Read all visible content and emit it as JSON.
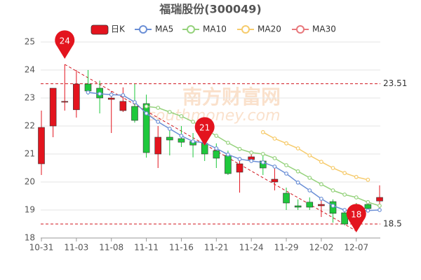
{
  "chart_data": {
    "type": "candlestick",
    "title": "福瑞股份(300049)",
    "categories": [
      "10-31",
      null,
      null,
      "11-03",
      null,
      null,
      "11-08",
      null,
      null,
      "11-11",
      null,
      null,
      "11-16",
      null,
      null,
      "11-21",
      null,
      null,
      "11-24",
      null,
      null,
      "11-29",
      null,
      null,
      "12-02",
      null,
      null,
      "12-07",
      null,
      null
    ],
    "candles": {
      "name": "日K",
      "up_color": "#e3141e",
      "down_color": "#1ec83c",
      "open": [
        20.65,
        22.0,
        22.85,
        22.58,
        23.5,
        23.35,
        22.95,
        22.55,
        22.7,
        22.8,
        21.0,
        21.6,
        21.55,
        21.45,
        21.38,
        21.12,
        20.95,
        20.35,
        20.8,
        20.75,
        20.0,
        19.6,
        19.15,
        19.28,
        19.15,
        19.3,
        18.9,
        18.85,
        19.2,
        19.32
      ],
      "high": [
        22.55,
        23.35,
        24.2,
        24.0,
        24.0,
        23.62,
        23.25,
        23.38,
        23.5,
        23.12,
        22.0,
        21.85,
        22.0,
        21.75,
        21.55,
        21.38,
        21.12,
        20.88,
        21.12,
        20.95,
        20.5,
        19.8,
        19.38,
        19.45,
        19.45,
        19.38,
        19.05,
        19.25,
        19.3,
        19.88
      ],
      "low": [
        20.25,
        21.6,
        22.55,
        22.3,
        23.12,
        22.45,
        21.75,
        22.5,
        22.12,
        20.87,
        20.5,
        20.95,
        21.25,
        20.88,
        20.75,
        20.5,
        20.25,
        19.62,
        20.7,
        20.25,
        19.7,
        19.0,
        19.0,
        19.0,
        18.75,
        18.55,
        18.45,
        18.25,
        18.95,
        19.0
      ],
      "close": [
        21.95,
        23.35,
        22.88,
        23.5,
        23.25,
        23.0,
        23.0,
        22.88,
        22.2,
        21.05,
        21.6,
        21.5,
        21.42,
        21.32,
        21.0,
        20.85,
        20.3,
        20.65,
        20.9,
        20.5,
        20.1,
        19.25,
        19.1,
        19.1,
        19.2,
        18.88,
        18.5,
        18.75,
        19.05,
        19.45
      ]
    },
    "series": [
      {
        "name": "MA5",
        "color": "#6b8fd6",
        "values": [
          null,
          null,
          null,
          null,
          23.2,
          23.15,
          23.12,
          23.1,
          22.85,
          22.45,
          22.15,
          21.9,
          21.65,
          21.45,
          21.4,
          21.2,
          20.98,
          20.82,
          20.75,
          20.7,
          20.55,
          20.3,
          19.98,
          19.7,
          19.4,
          19.15,
          19.0,
          18.95,
          18.98,
          19.0
        ]
      },
      {
        "name": "MA10",
        "color": "#95d27c",
        "values": [
          null,
          null,
          null,
          null,
          null,
          null,
          null,
          null,
          null,
          22.7,
          22.65,
          22.5,
          22.35,
          22.15,
          21.9,
          21.65,
          21.4,
          21.18,
          21.05,
          21.0,
          20.85,
          20.6,
          20.38,
          20.15,
          19.92,
          19.7,
          19.55,
          19.45,
          19.28,
          19.15
        ]
      },
      {
        "name": "MA20",
        "color": "#f6cb6c",
        "values": [
          null,
          null,
          null,
          null,
          null,
          null,
          null,
          null,
          null,
          null,
          null,
          null,
          null,
          null,
          null,
          null,
          null,
          null,
          null,
          21.78,
          21.55,
          21.38,
          21.2,
          20.95,
          20.72,
          20.5,
          20.32,
          20.18,
          20.08,
          null
        ]
      },
      {
        "name": "MA30",
        "color": "#e8787c",
        "values": [
          null,
          null,
          null,
          null,
          null,
          null,
          null,
          null,
          null,
          null,
          null,
          null,
          null,
          null,
          null,
          null,
          null,
          null,
          null,
          null,
          null,
          null,
          null,
          null,
          null,
          null,
          null,
          null,
          null,
          null
        ]
      }
    ],
    "ylim": [
      18,
      25
    ],
    "yticks": [
      18,
      19,
      20,
      21,
      22,
      23,
      24,
      25
    ],
    "grid": true,
    "hlines": [
      23.51,
      18.5
    ],
    "markers": [
      "24",
      "21",
      "18"
    ],
    "watermark": [
      "南方财富网",
      "southmoney.com"
    ]
  }
}
